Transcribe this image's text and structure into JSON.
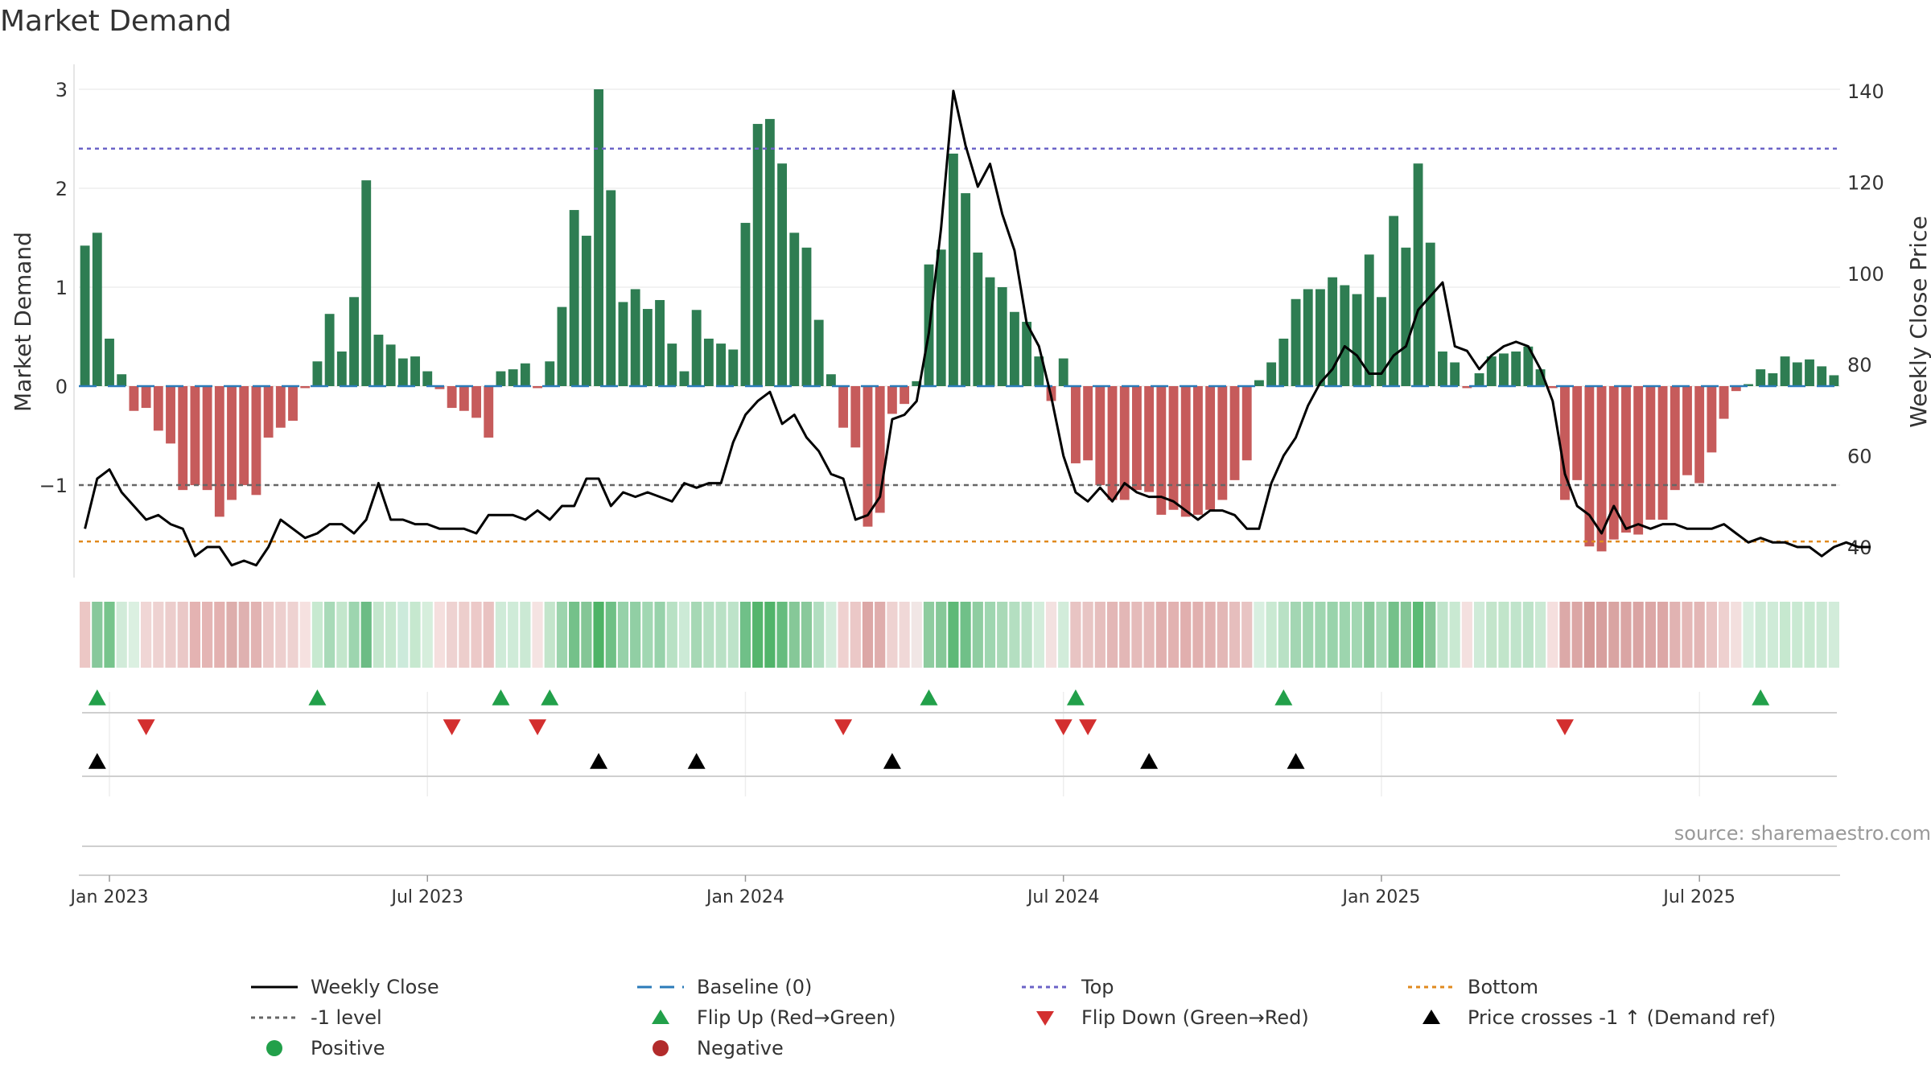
{
  "title": "Market Demand",
  "source": "source: sharemaestro.com",
  "colors": {
    "positive": "#2e7d52",
    "negative": "#c65b5b",
    "line": "#000000",
    "baseline": "#2b7bb9",
    "top": "#6b63c7",
    "bottom": "#e08a1e",
    "minus_one": "#666666",
    "flip_up": "#22a04a",
    "flip_down": "#d32f2f",
    "cross": "#000000",
    "grid": "#e6e6e6"
  },
  "chart_data": {
    "type": "bar",
    "title": "Market Demand",
    "x_axis": {
      "labels": [
        "Jan 2023",
        "Jul 2023",
        "Jan 2024",
        "Jul 2024",
        "Jan 2025",
        "Jul 2025"
      ],
      "label_weeks": [
        2,
        28,
        54,
        80,
        106,
        132
      ]
    },
    "y_left": {
      "label": "Market Demand",
      "ticks": [
        3,
        2,
        1,
        0,
        -1
      ],
      "range": [
        -1.95,
        3.1
      ]
    },
    "y_right": {
      "label": "Weekly Close Price",
      "ticks": [
        140,
        120,
        100,
        80,
        60,
        40
      ],
      "range": [
        39.2,
        140
      ]
    },
    "reference_lines": {
      "top": 2.4,
      "bottom": -1.57,
      "minus_one": -1,
      "baseline": 0
    },
    "series": [
      {
        "name": "Market Demand",
        "type": "bar",
        "values": [
          1.42,
          1.55,
          0.48,
          0.12,
          -0.25,
          -0.22,
          -0.45,
          -0.58,
          -1.05,
          -1.0,
          -1.05,
          -1.32,
          -1.15,
          -1.0,
          -1.1,
          -0.52,
          -0.42,
          -0.35,
          -0.02,
          0.25,
          0.73,
          0.35,
          0.9,
          2.08,
          0.52,
          0.42,
          0.28,
          0.3,
          0.15,
          -0.03,
          -0.22,
          -0.25,
          -0.32,
          -0.52,
          0.15,
          0.17,
          0.23,
          -0.02,
          0.25,
          0.8,
          1.78,
          1.52,
          3.0,
          1.98,
          0.85,
          0.98,
          0.78,
          0.87,
          0.43,
          0.15,
          0.77,
          0.48,
          0.43,
          0.37,
          1.65,
          2.65,
          2.7,
          2.25,
          1.55,
          1.4,
          0.67,
          0.12,
          -0.42,
          -0.62,
          -1.42,
          -1.28,
          -0.28,
          -0.18,
          0.05,
          1.23,
          1.38,
          2.35,
          1.95,
          1.35,
          1.1,
          1.0,
          0.75,
          0.65,
          0.3,
          -0.15,
          0.28,
          -0.78,
          -0.75,
          -1.0,
          -1.15,
          -1.15,
          -1.05,
          -1.07,
          -1.3,
          -1.25,
          -1.32,
          -1.3,
          -1.25,
          -1.15,
          -0.95,
          -0.75,
          0.06,
          0.24,
          0.48,
          0.88,
          0.98,
          0.98,
          1.1,
          1.02,
          0.93,
          1.33,
          0.9,
          1.72,
          1.4,
          2.25,
          1.45,
          0.35,
          0.24,
          -0.02,
          0.13,
          0.3,
          0.33,
          0.35,
          0.4,
          0.17,
          -0.02,
          -1.15,
          -0.95,
          -1.62,
          -1.67,
          -1.55,
          -1.48,
          -1.5,
          -1.35,
          -1.35,
          -1.05,
          -0.9,
          -0.98,
          -0.67,
          -0.33,
          -0.05,
          0.02,
          0.17,
          0.13,
          0.3,
          0.24,
          0.27,
          0.2,
          0.11
        ]
      },
      {
        "name": "Weekly Close",
        "type": "line",
        "values": [
          44,
          55,
          57,
          52,
          49,
          46,
          47,
          45,
          44,
          38,
          40,
          40,
          36,
          37,
          36,
          40,
          46,
          44,
          42,
          43,
          45,
          45,
          43,
          46,
          54,
          46,
          46,
          45,
          45,
          44,
          44,
          44,
          43,
          47,
          47,
          47,
          46,
          48,
          46,
          49,
          49,
          55,
          55,
          49,
          52,
          51,
          52,
          51,
          50,
          54,
          53,
          54,
          54,
          63,
          69,
          72,
          74,
          67,
          69,
          64,
          61,
          56,
          55,
          46,
          47,
          51,
          68,
          69,
          72,
          87,
          110,
          140,
          128,
          119,
          124,
          113,
          105,
          89,
          84,
          73,
          60,
          52,
          50,
          53,
          50,
          54,
          52,
          51,
          51,
          50,
          48,
          46,
          48,
          48,
          47,
          44,
          44,
          54,
          60,
          64,
          71,
          76,
          79,
          84,
          82,
          78,
          78,
          82,
          84,
          92,
          95,
          98,
          84,
          83,
          79,
          82,
          84,
          85,
          84,
          79,
          72,
          56,
          49,
          47,
          43,
          49,
          44,
          45,
          44,
          45,
          45,
          44,
          44,
          44,
          45,
          43,
          41,
          42,
          41,
          41,
          40,
          40,
          38,
          40,
          41,
          40,
          40
        ]
      }
    ],
    "strip_colors": [
      "#ecc7c5",
      "#87c89b",
      "#77c48c",
      "#d1ebd9",
      "#dbf0e1",
      "#f0d6d5",
      "#eed2d1",
      "#eccdcc",
      "#eac8c7",
      "#e4b3b2",
      "#e4b5b4",
      "#e3b1b0",
      "#ddaeac",
      "#dfb1b0",
      "#e2b3b2",
      "#ebc9c8",
      "#edcfce",
      "#eed2d1",
      "#f6e1e0",
      "#c7e9d0",
      "#a8dab8",
      "#c3e6cc",
      "#9dd5af",
      "#6cbc85",
      "#c4e6cd",
      "#c7e8d0",
      "#cceadb",
      "#c6e8cf",
      "#d6eedc",
      "#f5dfde",
      "#eed2d1",
      "#edcecc",
      "#ecc9c8",
      "#e9c2c1",
      "#cfebd8",
      "#cfebd8",
      "#cbe9d4",
      "#f5e3e2",
      "#c3e5cb",
      "#9cd4ad",
      "#74c18a",
      "#84c696",
      "#4eb366",
      "#6fc086",
      "#96d1a9",
      "#91cfa4",
      "#a1d7b2",
      "#97d2aa",
      "#b8e1c4",
      "#ccead6",
      "#a6d8b5",
      "#b6e0c3",
      "#b9e1c5",
      "#bde3c9",
      "#70c088",
      "#54b56c",
      "#51b46a",
      "#66bc7e",
      "#86c898",
      "#89c99b",
      "#b1dec0",
      "#d3eddc",
      "#efd1d0",
      "#ebc8c7",
      "#dca7a6",
      "#dfadac",
      "#eed2d1",
      "#f0d8d7",
      "#f1e6e5",
      "#8ecc9f",
      "#86c898",
      "#5eb977",
      "#70c088",
      "#8fcda1",
      "#9fd6b0",
      "#a9d9b7",
      "#b4dfc1",
      "#bce2c8",
      "#d3eddb",
      "#f3e1e0",
      "#d2ecda",
      "#e8c4c3",
      "#e8c5c4",
      "#e6bebd",
      "#e3b7b6",
      "#e3b7b6",
      "#e5bbba",
      "#e5bab9",
      "#e1b0af",
      "#e2b2b1",
      "#e1afae",
      "#e1b0af",
      "#e2b2b1",
      "#e3b7b6",
      "#e6bebd",
      "#e8c4c3",
      "#d8efe0",
      "#c9e9d2",
      "#b9e1c5",
      "#a3d6b3",
      "#9fd6b0",
      "#9fd6b0",
      "#99d3ab",
      "#9dd5ae",
      "#a2d7b2",
      "#8aca9c",
      "#a3d7b3",
      "#74c18a",
      "#84c696",
      "#5aba74",
      "#84c696",
      "#c0e4cb",
      "#c9e9d2",
      "#f4e0df",
      "#cfebd8",
      "#c3e5cb",
      "#c1e5ca",
      "#c0e4cb",
      "#bde3c9",
      "#cbe9d4",
      "#f5dfde",
      "#dca9a8",
      "#dba6a5",
      "#d59a98",
      "#d79f9e",
      "#d9a4a2",
      "#daa5a4",
      "#daa4a3",
      "#dca7a6",
      "#dca7a6",
      "#e1b3b2",
      "#e4b8b7",
      "#e3b6b5",
      "#e9c4c3",
      "#eed0cf",
      "#f3dfde",
      "#d8efe0",
      "#cdead6",
      "#cfebd8",
      "#c6e8cf",
      "#c9e9d2",
      "#c8e9d1",
      "#cbe9d4",
      "#d2ecda"
    ],
    "flip_up_weeks": [
      1,
      19,
      34,
      38,
      69,
      81,
      98,
      137
    ],
    "flip_down_weeks": [
      5,
      30,
      37,
      62,
      80,
      82,
      121
    ],
    "cross_weeks": [
      1,
      42,
      50,
      66,
      87,
      99
    ],
    "legend": [
      {
        "label": "Weekly Close",
        "marker": "line"
      },
      {
        "label": "Baseline (0)",
        "marker": "dash"
      },
      {
        "label": "Top",
        "marker": "dot-blue"
      },
      {
        "label": "Bottom",
        "marker": "dot-orange"
      },
      {
        "label": "-1 level",
        "marker": "dot-gray"
      },
      {
        "label": "Flip Up (Red→Green)",
        "marker": "tri-up-green"
      },
      {
        "label": "Flip Down (Green→Red)",
        "marker": "tri-down-red"
      },
      {
        "label": "Price crosses -1 ↑ (Demand ref)",
        "marker": "tri-up-black"
      },
      {
        "label": "Positive",
        "marker": "circle-green"
      },
      {
        "label": "Negative",
        "marker": "circle-red"
      }
    ]
  }
}
